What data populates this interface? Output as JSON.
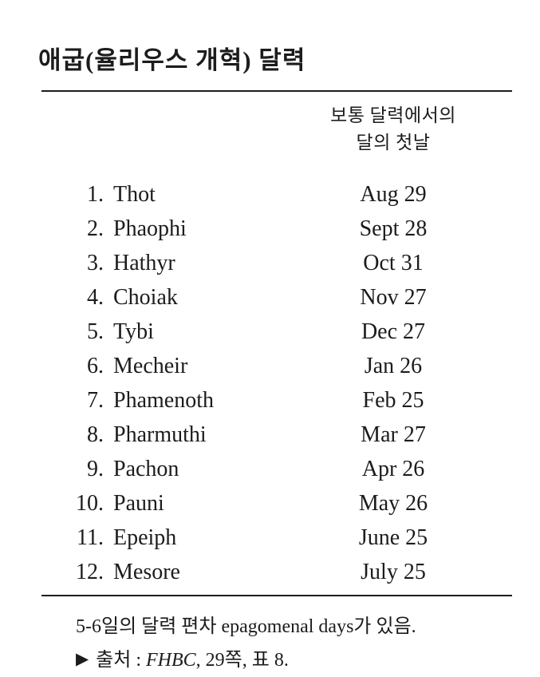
{
  "page": {
    "title": "애굽(율리우스 개혁) 달력",
    "table": {
      "header": {
        "line1": "보통 달력에서의",
        "line2": "달의 첫날"
      },
      "rows": [
        {
          "num": "1.",
          "month": "Thot",
          "first_day": "Aug 29"
        },
        {
          "num": "2.",
          "month": "Phaophi",
          "first_day": "Sept 28"
        },
        {
          "num": "3.",
          "month": "Hathyr",
          "first_day": "Oct 31"
        },
        {
          "num": "4.",
          "month": "Choiak",
          "first_day": "Nov 27"
        },
        {
          "num": "5.",
          "month": "Tybi",
          "first_day": "Dec 27"
        },
        {
          "num": "6.",
          "month": "Mecheir",
          "first_day": "Jan 26"
        },
        {
          "num": "7.",
          "month": "Phamenoth",
          "first_day": "Feb 25"
        },
        {
          "num": "8.",
          "month": "Pharmuthi",
          "first_day": "Mar 27"
        },
        {
          "num": "9.",
          "month": "Pachon",
          "first_day": "Apr 26"
        },
        {
          "num": "10.",
          "month": "Pauni",
          "first_day": "May 26"
        },
        {
          "num": "11.",
          "month": "Epeiph",
          "first_day": "June 25"
        },
        {
          "num": "12.",
          "month": "Mesore",
          "first_day": "July 25"
        }
      ]
    },
    "footnote": "5-6일의 달력 편차 epagomenal days가 있음.",
    "source": {
      "marker": "▶",
      "prefix": "출처 : ",
      "work": "FHBC",
      "suffix": ", 29쪽, 표 8."
    },
    "colors": {
      "ink": "#1c1c1c",
      "paper": "#ffffff"
    }
  }
}
